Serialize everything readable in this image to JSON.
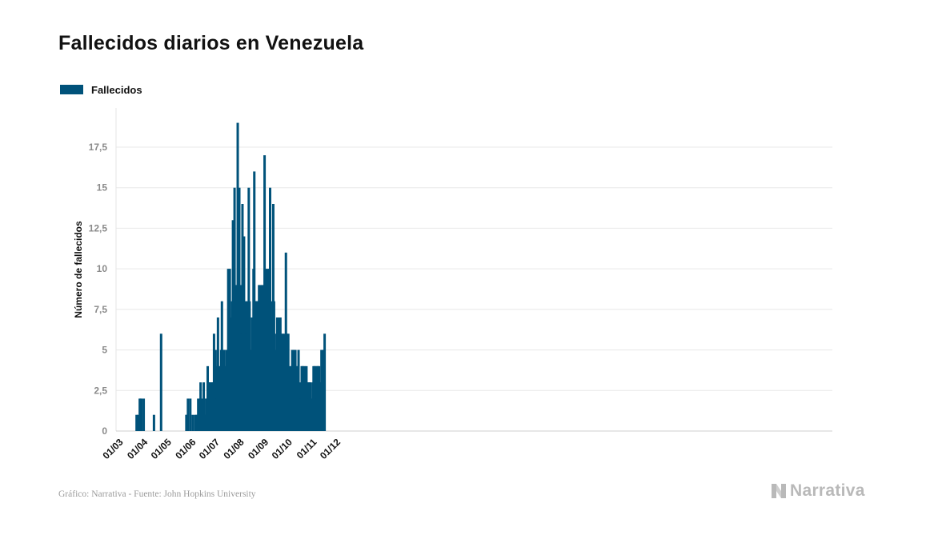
{
  "title": "Fallecidos diarios en Venezuela",
  "legend": {
    "label": "Fallecidos",
    "color": "#00527a"
  },
  "footer": {
    "source": "Gráfico: Narrativa - Fuente: John Hopkins University",
    "brand": "Narrativa"
  },
  "chart_data": {
    "type": "bar",
    "title": "Fallecidos diarios en Venezuela",
    "ylabel": "Número de fallecidos",
    "xlabel": "",
    "ylim": [
      0,
      20
    ],
    "grid": true,
    "legend_position": "top-left",
    "y_ticks": [
      {
        "value": 0,
        "label": "0"
      },
      {
        "value": 2.5,
        "label": "2,5"
      },
      {
        "value": 5,
        "label": "5"
      },
      {
        "value": 7.5,
        "label": "7,5"
      },
      {
        "value": 10,
        "label": "10"
      },
      {
        "value": 12.5,
        "label": "12,5"
      },
      {
        "value": 15,
        "label": "15"
      },
      {
        "value": 17.5,
        "label": "17,5"
      }
    ],
    "x_ticks": [
      {
        "date": "2020-03-01",
        "label": "01/03"
      },
      {
        "date": "2020-04-01",
        "label": "01/04"
      },
      {
        "date": "2020-05-01",
        "label": "01/05"
      },
      {
        "date": "2020-06-01",
        "label": "01/06"
      },
      {
        "date": "2020-07-01",
        "label": "01/07"
      },
      {
        "date": "2020-08-01",
        "label": "01/08"
      },
      {
        "date": "2020-09-01",
        "label": "01/09"
      },
      {
        "date": "2020-10-01",
        "label": "01/10"
      },
      {
        "date": "2020-11-01",
        "label": "01/11"
      },
      {
        "date": "2020-12-01",
        "label": "01/12"
      }
    ],
    "series": [
      {
        "name": "Fallecidos",
        "color": "#00527a",
        "points": [
          [
            "2020-03-26",
            1
          ],
          [
            "2020-03-28",
            1
          ],
          [
            "2020-03-30",
            2
          ],
          [
            "2020-03-31",
            2
          ],
          [
            "2020-04-01",
            2
          ],
          [
            "2020-04-04",
            2
          ],
          [
            "2020-04-17",
            1
          ],
          [
            "2020-04-26",
            6
          ],
          [
            "2020-05-28",
            1
          ],
          [
            "2020-05-29",
            1
          ],
          [
            "2020-05-30",
            2
          ],
          [
            "2020-06-02",
            2
          ],
          [
            "2020-06-05",
            1
          ],
          [
            "2020-06-08",
            1
          ],
          [
            "2020-06-10",
            1
          ],
          [
            "2020-06-11",
            1
          ],
          [
            "2020-06-12",
            2
          ],
          [
            "2020-06-14",
            2
          ],
          [
            "2020-06-15",
            3
          ],
          [
            "2020-06-17",
            2
          ],
          [
            "2020-06-19",
            3
          ],
          [
            "2020-06-20",
            1
          ],
          [
            "2020-06-21",
            1
          ],
          [
            "2020-06-22",
            2
          ],
          [
            "2020-06-23",
            2
          ],
          [
            "2020-06-24",
            4
          ],
          [
            "2020-06-25",
            3
          ],
          [
            "2020-06-26",
            3
          ],
          [
            "2020-06-27",
            3
          ],
          [
            "2020-06-28",
            2
          ],
          [
            "2020-06-29",
            3
          ],
          [
            "2020-06-30",
            3
          ],
          [
            "2020-07-01",
            3
          ],
          [
            "2020-07-02",
            6
          ],
          [
            "2020-07-03",
            1
          ],
          [
            "2020-07-04",
            5
          ],
          [
            "2020-07-05",
            2
          ],
          [
            "2020-07-06",
            4
          ],
          [
            "2020-07-07",
            7
          ],
          [
            "2020-07-08",
            4
          ],
          [
            "2020-07-09",
            4
          ],
          [
            "2020-07-10",
            3
          ],
          [
            "2020-07-11",
            5
          ],
          [
            "2020-07-12",
            8
          ],
          [
            "2020-07-13",
            4
          ],
          [
            "2020-07-14",
            5
          ],
          [
            "2020-07-15",
            5
          ],
          [
            "2020-07-16",
            4
          ],
          [
            "2020-07-17",
            4
          ],
          [
            "2020-07-18",
            5
          ],
          [
            "2020-07-19",
            3
          ],
          [
            "2020-07-20",
            10
          ],
          [
            "2020-07-22",
            10
          ],
          [
            "2020-07-23",
            6
          ],
          [
            "2020-07-24",
            7
          ],
          [
            "2020-07-25",
            8
          ],
          [
            "2020-07-26",
            13
          ],
          [
            "2020-07-27",
            10
          ],
          [
            "2020-07-28",
            15
          ],
          [
            "2020-07-29",
            6
          ],
          [
            "2020-07-30",
            9
          ],
          [
            "2020-07-31",
            9
          ],
          [
            "2020-08-01",
            19
          ],
          [
            "2020-08-02",
            9
          ],
          [
            "2020-08-03",
            15
          ],
          [
            "2020-08-04",
            7
          ],
          [
            "2020-08-05",
            9
          ],
          [
            "2020-08-06",
            6
          ],
          [
            "2020-08-07",
            14
          ],
          [
            "2020-08-08",
            6
          ],
          [
            "2020-08-09",
            12
          ],
          [
            "2020-08-10",
            7
          ],
          [
            "2020-08-11",
            8
          ],
          [
            "2020-08-12",
            6
          ],
          [
            "2020-08-13",
            8
          ],
          [
            "2020-08-14",
            7
          ],
          [
            "2020-08-15",
            15
          ],
          [
            "2020-08-16",
            8
          ],
          [
            "2020-08-17",
            5
          ],
          [
            "2020-08-18",
            5
          ],
          [
            "2020-08-19",
            7
          ],
          [
            "2020-08-20",
            4
          ],
          [
            "2020-08-21",
            10
          ],
          [
            "2020-08-22",
            16
          ],
          [
            "2020-08-23",
            8
          ],
          [
            "2020-08-24",
            8
          ],
          [
            "2020-08-25",
            8
          ],
          [
            "2020-08-26",
            8
          ],
          [
            "2020-08-27",
            8
          ],
          [
            "2020-08-28",
            9
          ],
          [
            "2020-08-29",
            8
          ],
          [
            "2020-08-30",
            9
          ],
          [
            "2020-08-31",
            8
          ],
          [
            "2020-09-01",
            9
          ],
          [
            "2020-09-02",
            8
          ],
          [
            "2020-09-03",
            9
          ],
          [
            "2020-09-04",
            17
          ],
          [
            "2020-09-05",
            8
          ],
          [
            "2020-09-06",
            10
          ],
          [
            "2020-09-07",
            9
          ],
          [
            "2020-09-08",
            10
          ],
          [
            "2020-09-09",
            7
          ],
          [
            "2020-09-10",
            10
          ],
          [
            "2020-09-11",
            15
          ],
          [
            "2020-09-12",
            8
          ],
          [
            "2020-09-13",
            7
          ],
          [
            "2020-09-14",
            7
          ],
          [
            "2020-09-15",
            14
          ],
          [
            "2020-09-16",
            8
          ],
          [
            "2020-09-17",
            6
          ],
          [
            "2020-09-18",
            4
          ],
          [
            "2020-09-19",
            5
          ],
          [
            "2020-09-20",
            7
          ],
          [
            "2020-09-21",
            6
          ],
          [
            "2020-09-22",
            7
          ],
          [
            "2020-09-23",
            6
          ],
          [
            "2020-09-24",
            7
          ],
          [
            "2020-09-25",
            6
          ],
          [
            "2020-09-26",
            4
          ],
          [
            "2020-09-27",
            6
          ],
          [
            "2020-09-28",
            5
          ],
          [
            "2020-09-29",
            6
          ],
          [
            "2020-09-30",
            5
          ],
          [
            "2020-10-01",
            11
          ],
          [
            "2020-10-02",
            6
          ],
          [
            "2020-10-03",
            5
          ],
          [
            "2020-10-04",
            6
          ],
          [
            "2020-10-05",
            3
          ],
          [
            "2020-10-06",
            4
          ],
          [
            "2020-10-07",
            3
          ],
          [
            "2020-10-08",
            4
          ],
          [
            "2020-10-09",
            5
          ],
          [
            "2020-10-10",
            3
          ],
          [
            "2020-10-11",
            5
          ],
          [
            "2020-10-12",
            4
          ],
          [
            "2020-10-13",
            5
          ],
          [
            "2020-10-14",
            3
          ],
          [
            "2020-10-15",
            4
          ],
          [
            "2020-10-16",
            4
          ],
          [
            "2020-10-17",
            5
          ],
          [
            "2020-10-18",
            3
          ],
          [
            "2020-10-19",
            2
          ],
          [
            "2020-10-20",
            2
          ],
          [
            "2020-10-21",
            4
          ],
          [
            "2020-10-22",
            4
          ],
          [
            "2020-10-23",
            4
          ],
          [
            "2020-10-24",
            3
          ],
          [
            "2020-10-25",
            4
          ],
          [
            "2020-10-26",
            3
          ],
          [
            "2020-10-27",
            4
          ],
          [
            "2020-10-28",
            3
          ],
          [
            "2020-10-29",
            2
          ],
          [
            "2020-10-30",
            3
          ],
          [
            "2020-10-31",
            3
          ],
          [
            "2020-11-01",
            3
          ],
          [
            "2020-11-02",
            2
          ],
          [
            "2020-11-03",
            2
          ],
          [
            "2020-11-04",
            3
          ],
          [
            "2020-11-05",
            4
          ],
          [
            "2020-11-06",
            4
          ],
          [
            "2020-11-07",
            4
          ],
          [
            "2020-11-08",
            2
          ],
          [
            "2020-11-09",
            4
          ],
          [
            "2020-11-10",
            4
          ],
          [
            "2020-11-11",
            4
          ],
          [
            "2020-11-12",
            4
          ],
          [
            "2020-11-13",
            3
          ],
          [
            "2020-11-14",
            3
          ],
          [
            "2020-11-15",
            5
          ],
          [
            "2020-11-16",
            4
          ],
          [
            "2020-11-17",
            5
          ],
          [
            "2020-11-18",
            5
          ],
          [
            "2020-11-19",
            6
          ]
        ]
      }
    ]
  }
}
